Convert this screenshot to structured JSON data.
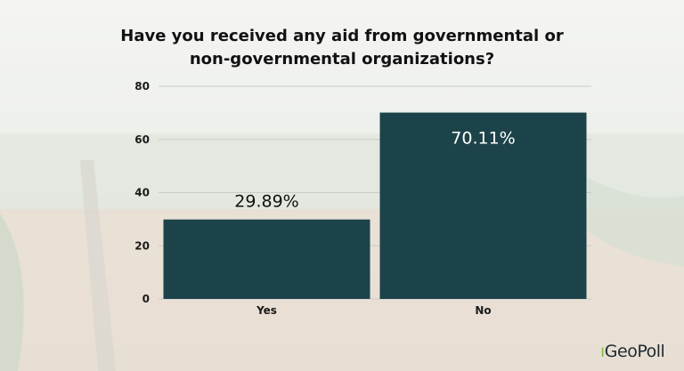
{
  "chart_data": {
    "type": "bar",
    "title": "Have you received any aid from governmental or non-governmental organizations?",
    "categories": [
      "Yes",
      "No"
    ],
    "values": [
      29.89,
      70.11
    ],
    "data_labels": [
      "29.89%",
      "70.11%"
    ],
    "xlabel": "",
    "ylabel": "",
    "ylim": [
      0,
      80
    ],
    "yticks": [
      0,
      20,
      40,
      60,
      80
    ],
    "grid": true,
    "bar_color": "#1c4349",
    "label_color_outside": "#111111",
    "label_color_inside": "#ffffff"
  },
  "brand": {
    "logo_text": "GeoPoll",
    "accent": "#7cc242"
  }
}
